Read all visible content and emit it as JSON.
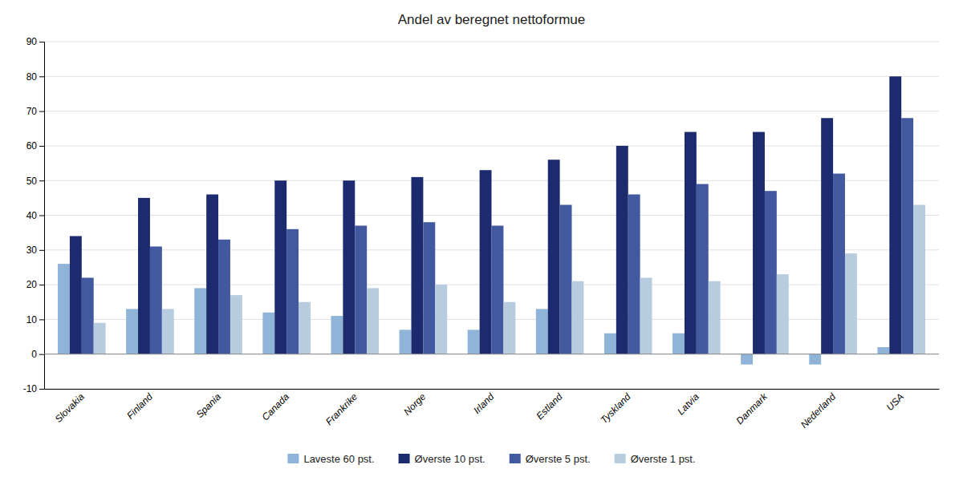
{
  "chart_data": {
    "type": "bar",
    "title": "Andel av beregnet nettoformue",
    "categories": [
      "Slovakia",
      "Finland",
      "Spania",
      "Canada",
      "Frankrike",
      "Norge",
      "Irland",
      "Estland",
      "Tyskland",
      "Latvia",
      "Danmark",
      "Nederland",
      "USA"
    ],
    "series": [
      {
        "name": "Laveste 60 pst.",
        "color": "#8fb4d8",
        "values": [
          26,
          13,
          19,
          12,
          11,
          7,
          7,
          13,
          6,
          6,
          -3,
          -3,
          2
        ]
      },
      {
        "name": "Øverste 10 pst.",
        "color": "#1c2b6e",
        "values": [
          34,
          45,
          46,
          50,
          50,
          51,
          53,
          56,
          60,
          64,
          64,
          68,
          80
        ]
      },
      {
        "name": "Øverste 5 pst.",
        "color": "#4259a0",
        "values": [
          22,
          31,
          33,
          36,
          37,
          38,
          37,
          43,
          46,
          49,
          47,
          52,
          68
        ]
      },
      {
        "name": "Øverste 1 pst.",
        "color": "#b8ccdf",
        "values": [
          9,
          13,
          17,
          15,
          19,
          20,
          15,
          21,
          22,
          21,
          23,
          29,
          43
        ]
      }
    ],
    "ylim": [
      -10,
      90
    ],
    "yticks": [
      -10,
      0,
      10,
      20,
      30,
      40,
      50,
      60,
      70,
      80,
      90
    ],
    "grid": true,
    "legend": "bottom"
  }
}
